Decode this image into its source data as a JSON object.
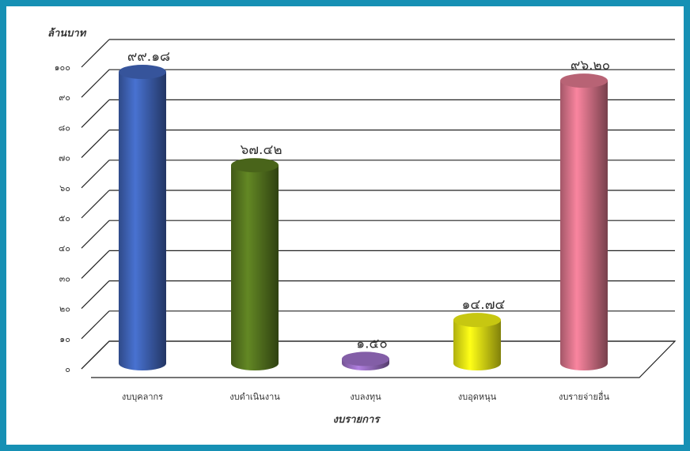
{
  "chart_data": {
    "type": "bar",
    "ylabel": "ล้านบาท",
    "xlabel": "งบรายการ",
    "ylim": [
      0,
      100
    ],
    "yticks": [
      "๐",
      "๑๐",
      "๒๐",
      "๓๐",
      "๔๐",
      "๕๐",
      "๖๐",
      "๗๐",
      "๘๐",
      "๙๐",
      "๑๐๐"
    ],
    "categories": [
      "งบบุคลากร",
      "งบดำเนินงาน",
      "งบลงทุน",
      "งบอุดหนุน",
      "งบรายจ่ายอื่น"
    ],
    "values": [
      99.18,
      67.42,
      1.5,
      14.74,
      96.2
    ],
    "data_labels": [
      "๙๙.๑๘",
      "๖๗.๔๒",
      "๑.๕๐",
      "๑๔.๗๔",
      "๙๖.๒๐"
    ],
    "colors": [
      "#3f63b6",
      "#56761f",
      "#9a6fc4",
      "#eaea14",
      "#d9748a"
    ],
    "grid": true,
    "style": "3d-cylinder"
  }
}
